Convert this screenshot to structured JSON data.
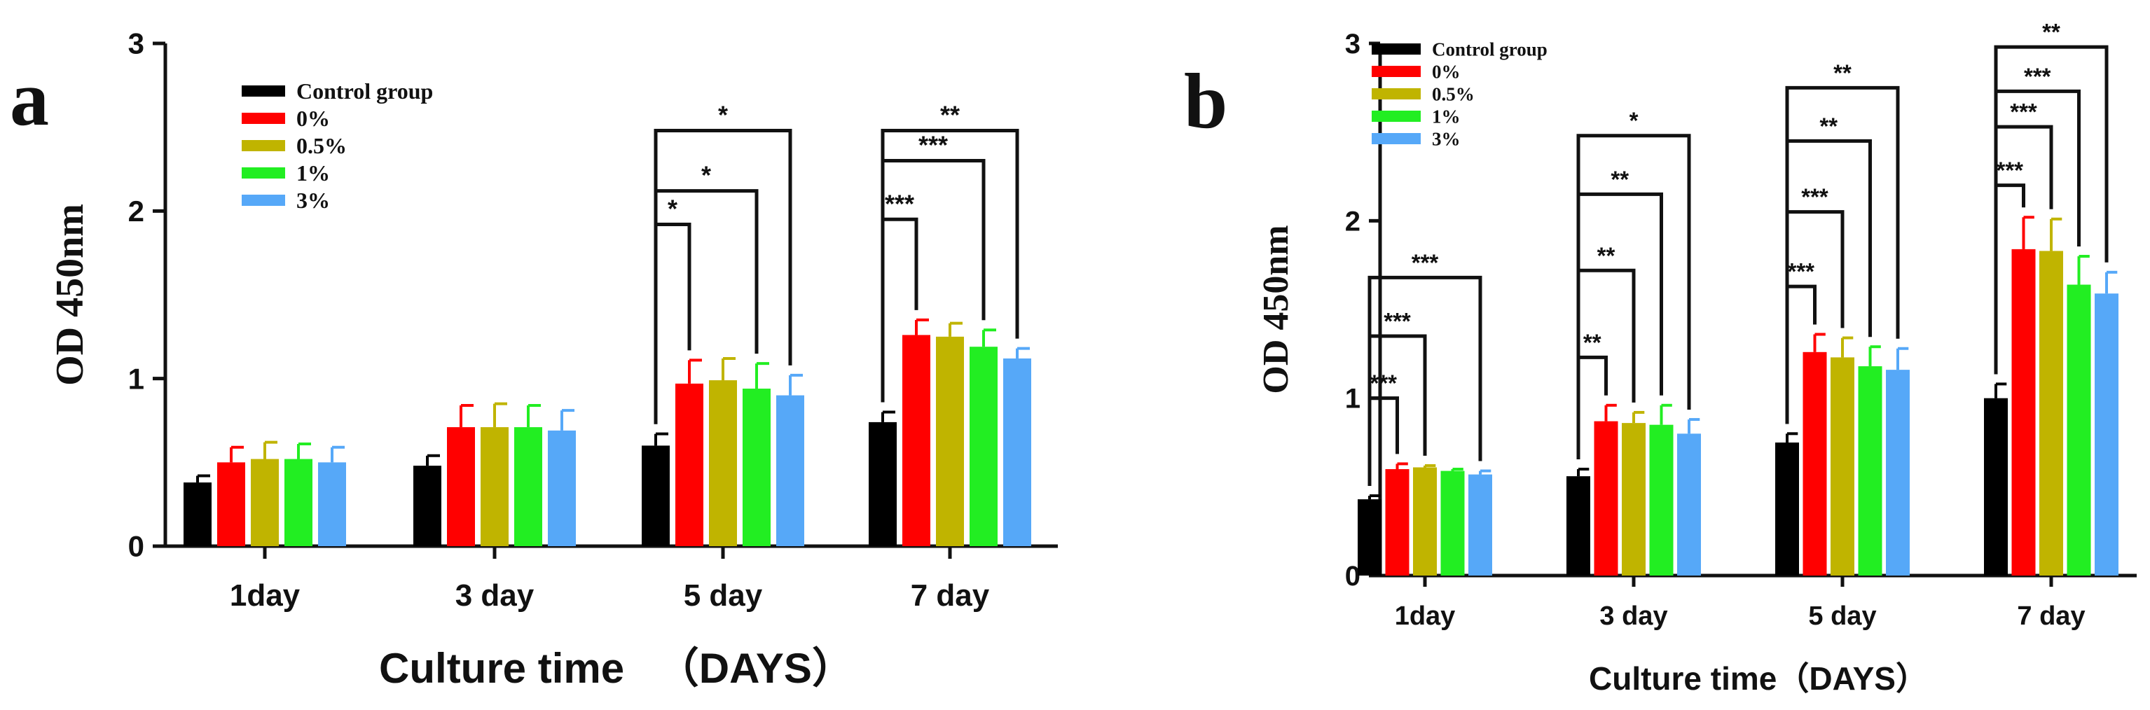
{
  "chart_data": [
    {
      "panel": "a",
      "type": "bar",
      "title": "",
      "ylabel": "OD 450nm",
      "xlabel": "Culture time 　（DAYS）",
      "ylim": [
        0,
        3
      ],
      "yticks": [
        "0",
        "1",
        "2",
        "3"
      ],
      "categories": [
        "1day",
        "3 day",
        "5 day",
        "7 day"
      ],
      "legend_position": "top-left",
      "series": [
        {
          "name": "Control group",
          "color": "#000000",
          "values": [
            0.38,
            0.48,
            0.6,
            0.74
          ],
          "errors": [
            0.04,
            0.06,
            0.07,
            0.06
          ]
        },
        {
          "name": "0%",
          "color": "#ff0000",
          "values": [
            0.5,
            0.71,
            0.97,
            1.26
          ],
          "errors": [
            0.09,
            0.13,
            0.14,
            0.09
          ]
        },
        {
          "name": "0.5%",
          "color": "#c0b400",
          "values": [
            0.52,
            0.71,
            0.99,
            1.25
          ],
          "errors": [
            0.1,
            0.14,
            0.13,
            0.08
          ]
        },
        {
          "name": "1%",
          "color": "#22ee22",
          "values": [
            0.52,
            0.71,
            0.94,
            1.19
          ],
          "errors": [
            0.09,
            0.13,
            0.15,
            0.1
          ]
        },
        {
          "name": "3%",
          "color": "#56a8f8",
          "values": [
            0.5,
            0.69,
            0.9,
            1.12
          ],
          "errors": [
            0.09,
            0.12,
            0.12,
            0.06
          ]
        }
      ],
      "significance": [
        {
          "category": 2,
          "from": 0,
          "to": 1,
          "label": "*",
          "level": 1.92
        },
        {
          "category": 2,
          "from": 0,
          "to": 3,
          "label": "*",
          "level": 2.12
        },
        {
          "category": 2,
          "from": 0,
          "to": 4,
          "label": "*",
          "level": 2.48
        },
        {
          "category": 3,
          "from": 0,
          "to": 1,
          "label": "***",
          "level": 1.95
        },
        {
          "category": 3,
          "from": 0,
          "to": 3,
          "label": "***",
          "level": 2.3
        },
        {
          "category": 3,
          "from": 0,
          "to": 4,
          "label": "**",
          "level": 2.48
        }
      ]
    },
    {
      "panel": "b",
      "type": "bar",
      "title": "",
      "ylabel": "OD 450nm",
      "xlabel": "Culture  time（DAYS）",
      "ylim": [
        0,
        3
      ],
      "yticks": [
        "0",
        "1",
        "2",
        "3"
      ],
      "categories": [
        "1day",
        "3 day",
        "5 day",
        "7 day"
      ],
      "legend_position": "top-left",
      "series": [
        {
          "name": "Control group",
          "color": "#000000",
          "values": [
            0.43,
            0.56,
            0.75,
            1.0
          ],
          "errors": [
            0.02,
            0.04,
            0.05,
            0.08
          ]
        },
        {
          "name": "0%",
          "color": "#ff0000",
          "values": [
            0.6,
            0.87,
            1.26,
            1.84
          ],
          "errors": [
            0.03,
            0.09,
            0.1,
            0.18
          ]
        },
        {
          "name": "0.5%",
          "color": "#c0b400",
          "values": [
            0.61,
            0.86,
            1.23,
            1.83
          ],
          "errors": [
            0.01,
            0.06,
            0.11,
            0.18
          ]
        },
        {
          "name": "1%",
          "color": "#22ee22",
          "values": [
            0.59,
            0.85,
            1.18,
            1.64
          ],
          "errors": [
            0.01,
            0.11,
            0.11,
            0.16
          ]
        },
        {
          "name": "3%",
          "color": "#56a8f8",
          "values": [
            0.57,
            0.8,
            1.16,
            1.59
          ],
          "errors": [
            0.02,
            0.08,
            0.12,
            0.12
          ]
        }
      ],
      "significance": [
        {
          "category": 0,
          "from": 0,
          "to": 1,
          "label": "***",
          "level": 1.0
        },
        {
          "category": 0,
          "from": 0,
          "to": 2,
          "label": "***",
          "level": 1.35
        },
        {
          "category": 0,
          "from": 0,
          "to": 4,
          "label": "***",
          "level": 1.68
        },
        {
          "category": 1,
          "from": 0,
          "to": 1,
          "label": "**",
          "level": 1.23
        },
        {
          "category": 1,
          "from": 0,
          "to": 2,
          "label": "**",
          "level": 1.72
        },
        {
          "category": 1,
          "from": 0,
          "to": 3,
          "label": "**",
          "level": 2.15
        },
        {
          "category": 1,
          "from": 0,
          "to": 4,
          "label": "*",
          "level": 2.48
        },
        {
          "category": 2,
          "from": 0,
          "to": 1,
          "label": "***",
          "level": 1.63
        },
        {
          "category": 2,
          "from": 0,
          "to": 2,
          "label": "***",
          "level": 2.05
        },
        {
          "category": 2,
          "from": 0,
          "to": 3,
          "label": "**",
          "level": 2.45
        },
        {
          "category": 2,
          "from": 0,
          "to": 4,
          "label": "**",
          "level": 2.75
        },
        {
          "category": 3,
          "from": 0,
          "to": 1,
          "label": "***",
          "level": 2.2
        },
        {
          "category": 3,
          "from": 0,
          "to": 2,
          "label": "***",
          "level": 2.53
        },
        {
          "category": 3,
          "from": 0,
          "to": 3,
          "label": "***",
          "level": 2.73
        },
        {
          "category": 3,
          "from": 0,
          "to": 4,
          "label": "**",
          "level": 2.98
        }
      ]
    }
  ]
}
